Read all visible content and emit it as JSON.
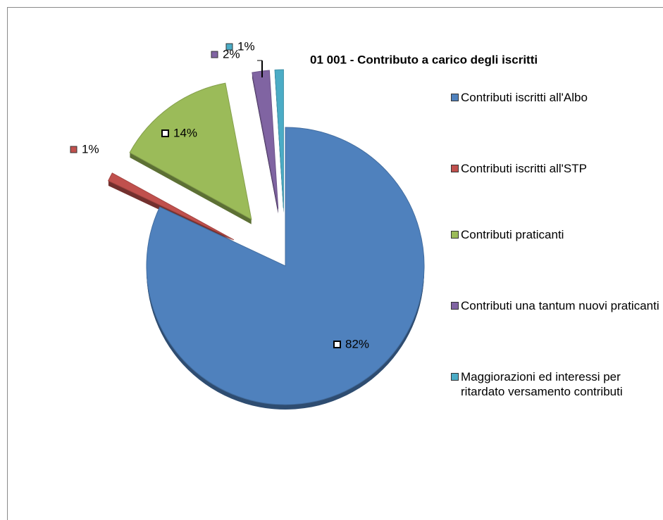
{
  "chart_data": {
    "type": "pie",
    "title": "01 001 - Contributo a carico degli iscritti",
    "categories": [
      "Contributi iscritti all'Albo",
      "Contributi iscritti all'STP",
      "Contributi praticanti",
      "Contributi una tantum nuovi praticanti",
      "Maggiorazioni ed interessi per ritardato versamento contributi"
    ],
    "values": [
      82,
      1,
      14,
      2,
      1
    ],
    "value_labels": [
      "82%",
      "1%",
      "14%",
      "2%",
      "1%"
    ],
    "colors": [
      "#4f81bd",
      "#c0504d",
      "#9bbb59",
      "#8064a2",
      "#4bacc6"
    ],
    "legend": "right"
  }
}
